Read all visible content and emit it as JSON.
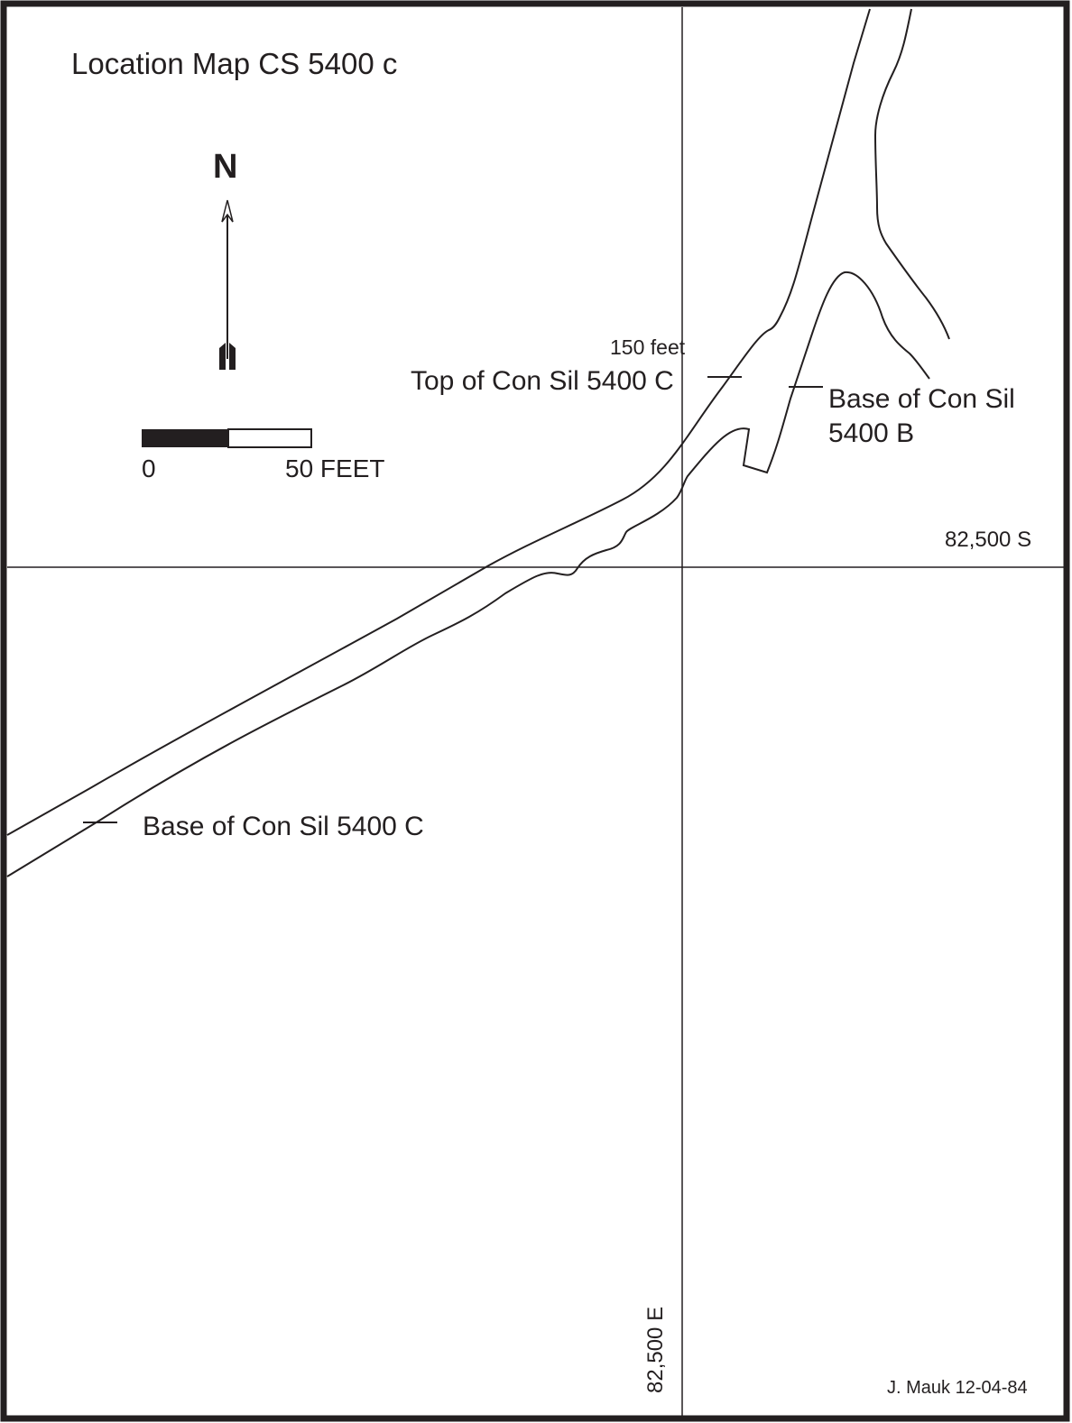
{
  "map": {
    "title": "Location Map CS 5400 c",
    "north_label": "N",
    "north_arrow_icon": "north-arrow-icon",
    "scale_bar": {
      "start_label": "0",
      "end_label": "50 FEET"
    },
    "annotations": {
      "distance": "150 feet",
      "top_con_sil_c": "Top of Con Sil 5400 C",
      "base_con_sil_b_line1": "Base of Con Sil",
      "base_con_sil_b_line2": "5400 B",
      "base_con_sil_c": "Base of Con Sil 5400 C"
    },
    "grid": {
      "horizontal_label": "82,500 S",
      "vertical_label": "82,500 E"
    },
    "credit": "J. Mauk  12-04-84",
    "colors": {
      "ink": "#231f20",
      "background": "#ffffff"
    }
  }
}
